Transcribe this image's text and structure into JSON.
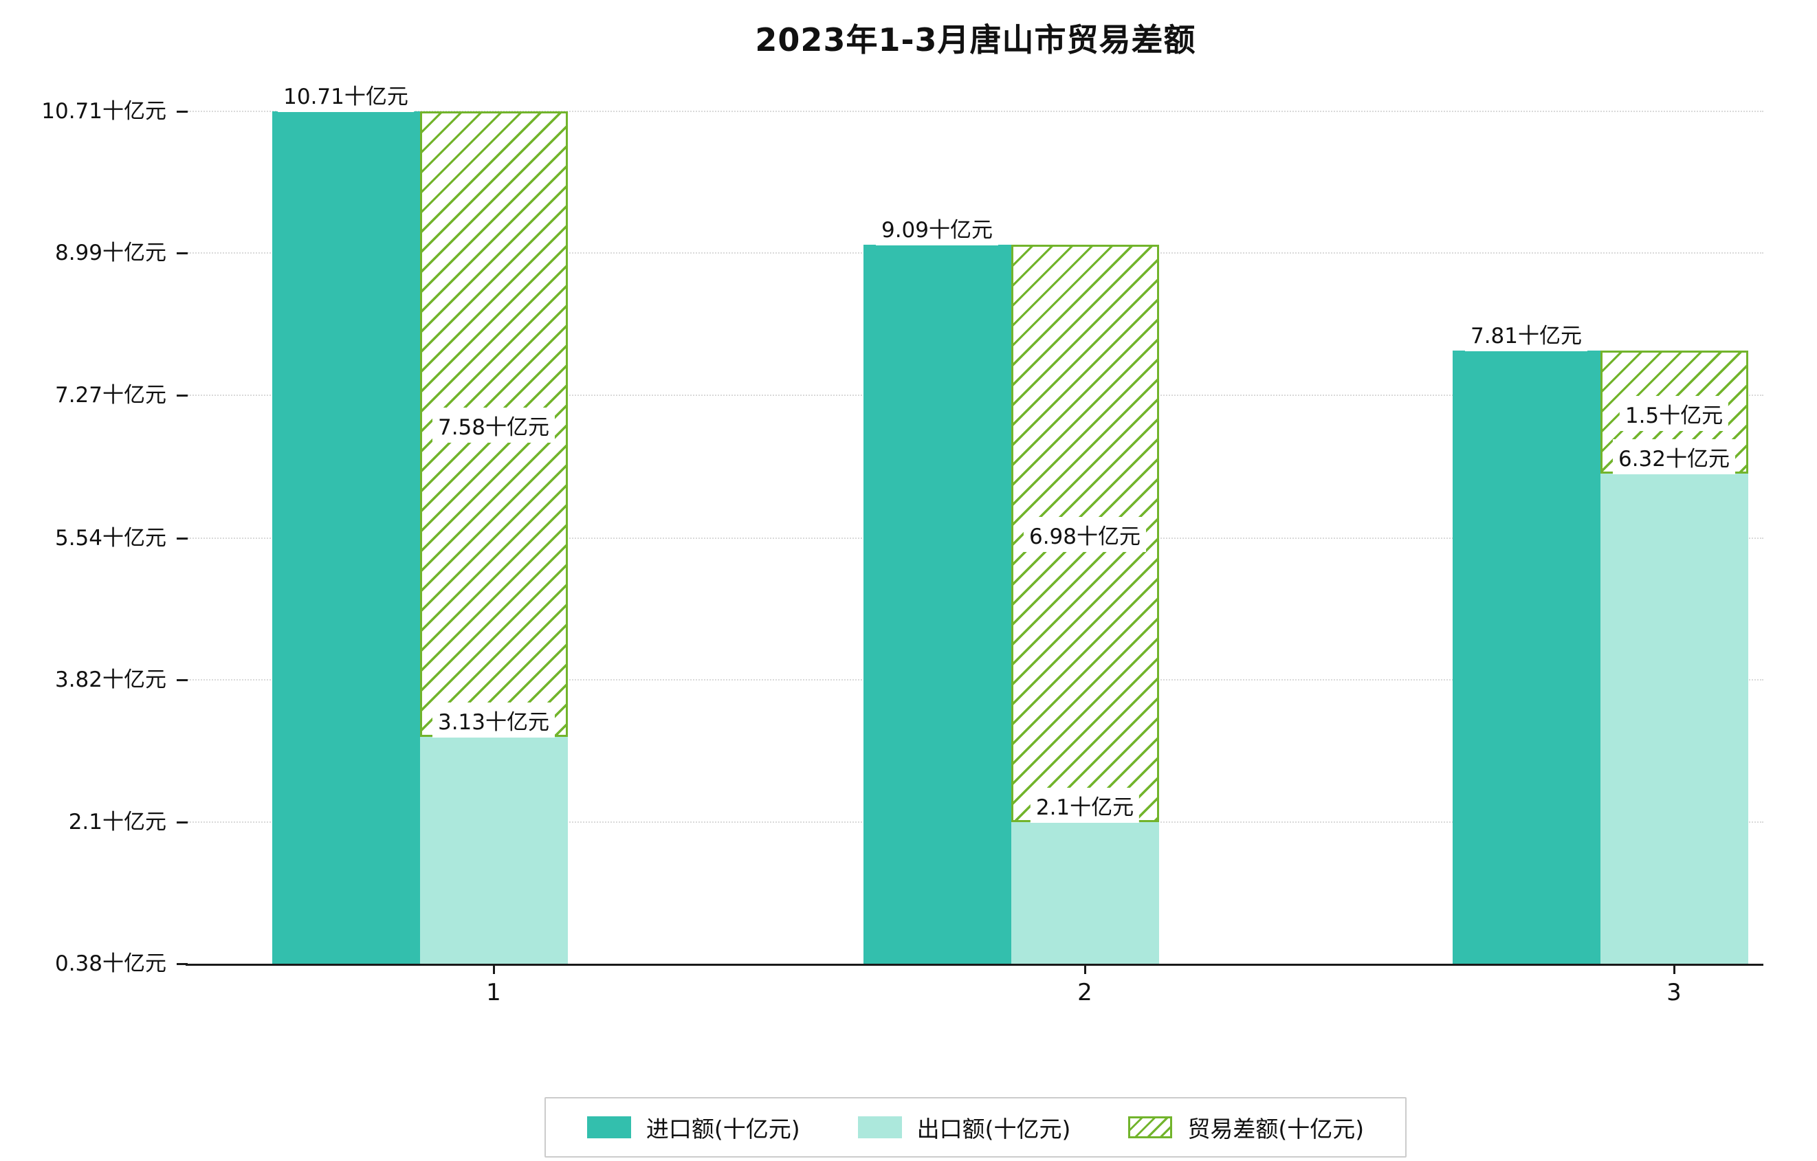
{
  "title": "2023年1-3月唐山市贸易差额",
  "unit": "十亿元",
  "colors": {
    "import_bar": "#33bfad",
    "export_bar": "#ace8dc",
    "balance_hatch": "#72b42c",
    "gridline": "#d9d9d9",
    "axis": "#1a1a1a"
  },
  "chart_data": {
    "type": "bar",
    "title": "2023年1-3月唐山市贸易差额",
    "categories": [
      "1",
      "2",
      "3"
    ],
    "series": [
      {
        "name": "进口额(十亿元)",
        "values": [
          10.71,
          9.09,
          7.81
        ]
      },
      {
        "name": "出口额(十亿元)",
        "values": [
          3.13,
          2.1,
          6.32
        ]
      },
      {
        "name": "贸易差额(十亿元)",
        "values": [
          7.58,
          6.98,
          1.5
        ]
      }
    ],
    "value_labels": {
      "import": [
        "10.71十亿元",
        "9.09十亿元",
        "7.81十亿元"
      ],
      "export": [
        "3.13十亿元",
        "2.1十亿元",
        "6.32十亿元"
      ],
      "balance": [
        "7.58十亿元",
        "6.98十亿元",
        "1.5十亿元"
      ]
    },
    "y_ticks": [
      0.38,
      2.1,
      3.82,
      5.54,
      7.27,
      8.99,
      10.71
    ],
    "y_tick_labels": [
      "0.38十亿元",
      "2.1十亿元",
      "3.82十亿元",
      "5.54十亿元",
      "7.27十亿元",
      "8.99十亿元",
      "10.71十亿元"
    ],
    "ylim": [
      0.38,
      10.71
    ],
    "grid": true,
    "legend_position": "bottom"
  }
}
